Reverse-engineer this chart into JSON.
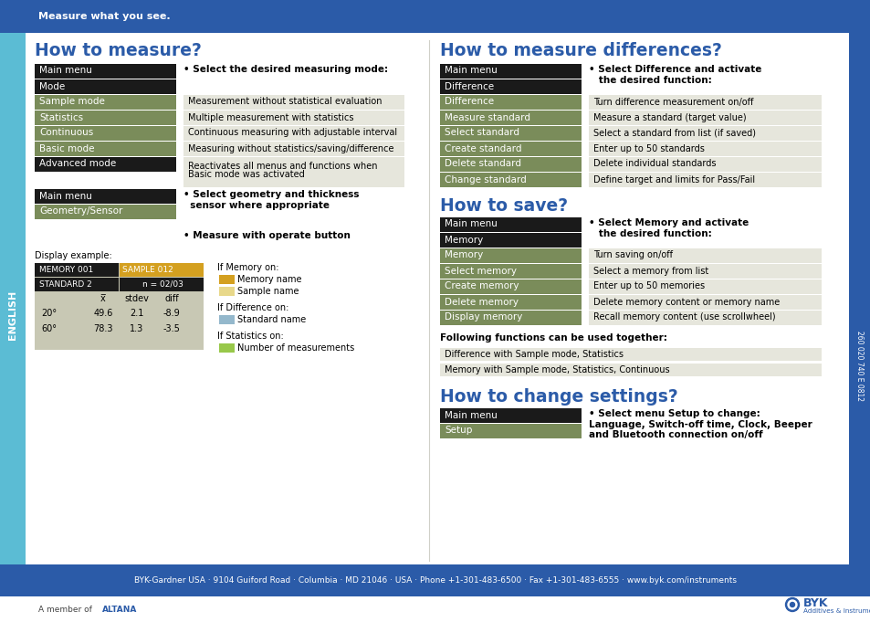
{
  "bg_top_color": "#2B5BA8",
  "bg_left_strip_color": "#5BBCD4",
  "bg_right_strip_color": "#2B5BA8",
  "bg_footer_color": "#2B5BA8",
  "header_text": "Measure what you see.",
  "title1": "How to measure?",
  "title2": "How to measure differences?",
  "title3": "How to save?",
  "title4": "How to change settings?",
  "title_color": "#2B5BA8",
  "dark_row_color": "#1A1A1A",
  "olive_row_color": "#7A8C5A",
  "light_row_color": "#E6E6DC",
  "footer_text": "BYK-Gardner USA · 9104 Guiford Road · Columbia · MD 21046 · USA · Phone +1-301-483-6500 · Fax +1-301-483-6555 · www.byk.com/instruments",
  "table1_rows": [
    {
      "label": "Main menu",
      "dark": true
    },
    {
      "label": "Mode",
      "dark": true
    },
    {
      "label": "Sample mode",
      "dark": false
    },
    {
      "label": "Statistics",
      "dark": false
    },
    {
      "label": "Continuous",
      "dark": false
    },
    {
      "label": "Basic mode",
      "dark": false
    },
    {
      "label": "Advanced mode",
      "dark": true
    }
  ],
  "table1_descriptions": [
    "",
    "",
    "Measurement without statistical evaluation",
    "Multiple measurement with statistics",
    "Continuous measuring with adjustable interval",
    "Measuring without statistics/saving/difference",
    "Reactivates all menus and functions when\nBasic mode was activated"
  ],
  "table2_rows": [
    {
      "label": "Main menu",
      "dark": true
    },
    {
      "label": "Geometry/Sensor",
      "dark": false
    }
  ],
  "table3_rows": [
    {
      "label": "Main menu",
      "dark": true
    },
    {
      "label": "Difference",
      "dark": true
    },
    {
      "label": "Difference",
      "dark": false
    },
    {
      "label": "Measure standard",
      "dark": false
    },
    {
      "label": "Select standard",
      "dark": false
    },
    {
      "label": "Create standard",
      "dark": false
    },
    {
      "label": "Delete standard",
      "dark": false
    },
    {
      "label": "Change standard",
      "dark": false
    }
  ],
  "table3_descriptions": [
    "",
    "",
    "Turn difference measurement on/off",
    "Measure a standard (target value)",
    "Select a standard from list (if saved)",
    "Enter up to 50 standards",
    "Delete individual standards",
    "Define target and limits for Pass/Fail"
  ],
  "table4_rows": [
    {
      "label": "Main menu",
      "dark": true
    },
    {
      "label": "Memory",
      "dark": true
    },
    {
      "label": "Memory",
      "dark": false
    },
    {
      "label": "Select memory",
      "dark": false
    },
    {
      "label": "Create memory",
      "dark": false
    },
    {
      "label": "Delete memory",
      "dark": false
    },
    {
      "label": "Display memory",
      "dark": false
    }
  ],
  "table4_descriptions": [
    "",
    "",
    "Turn saving on/off",
    "Select a memory from list",
    "Enter up to 50 memories",
    "Delete memory content or memory name",
    "Recall memory content (use scrollwheel)"
  ],
  "table5_rows": [
    {
      "label": "Main menu",
      "dark": true
    },
    {
      "label": "Setup",
      "dark": false
    }
  ],
  "func_rows": [
    "Difference with Sample mode, Statistics",
    "Memory with Sample mode, Statistics, Continuous"
  ],
  "side_text": "260 020 740 E 0812"
}
